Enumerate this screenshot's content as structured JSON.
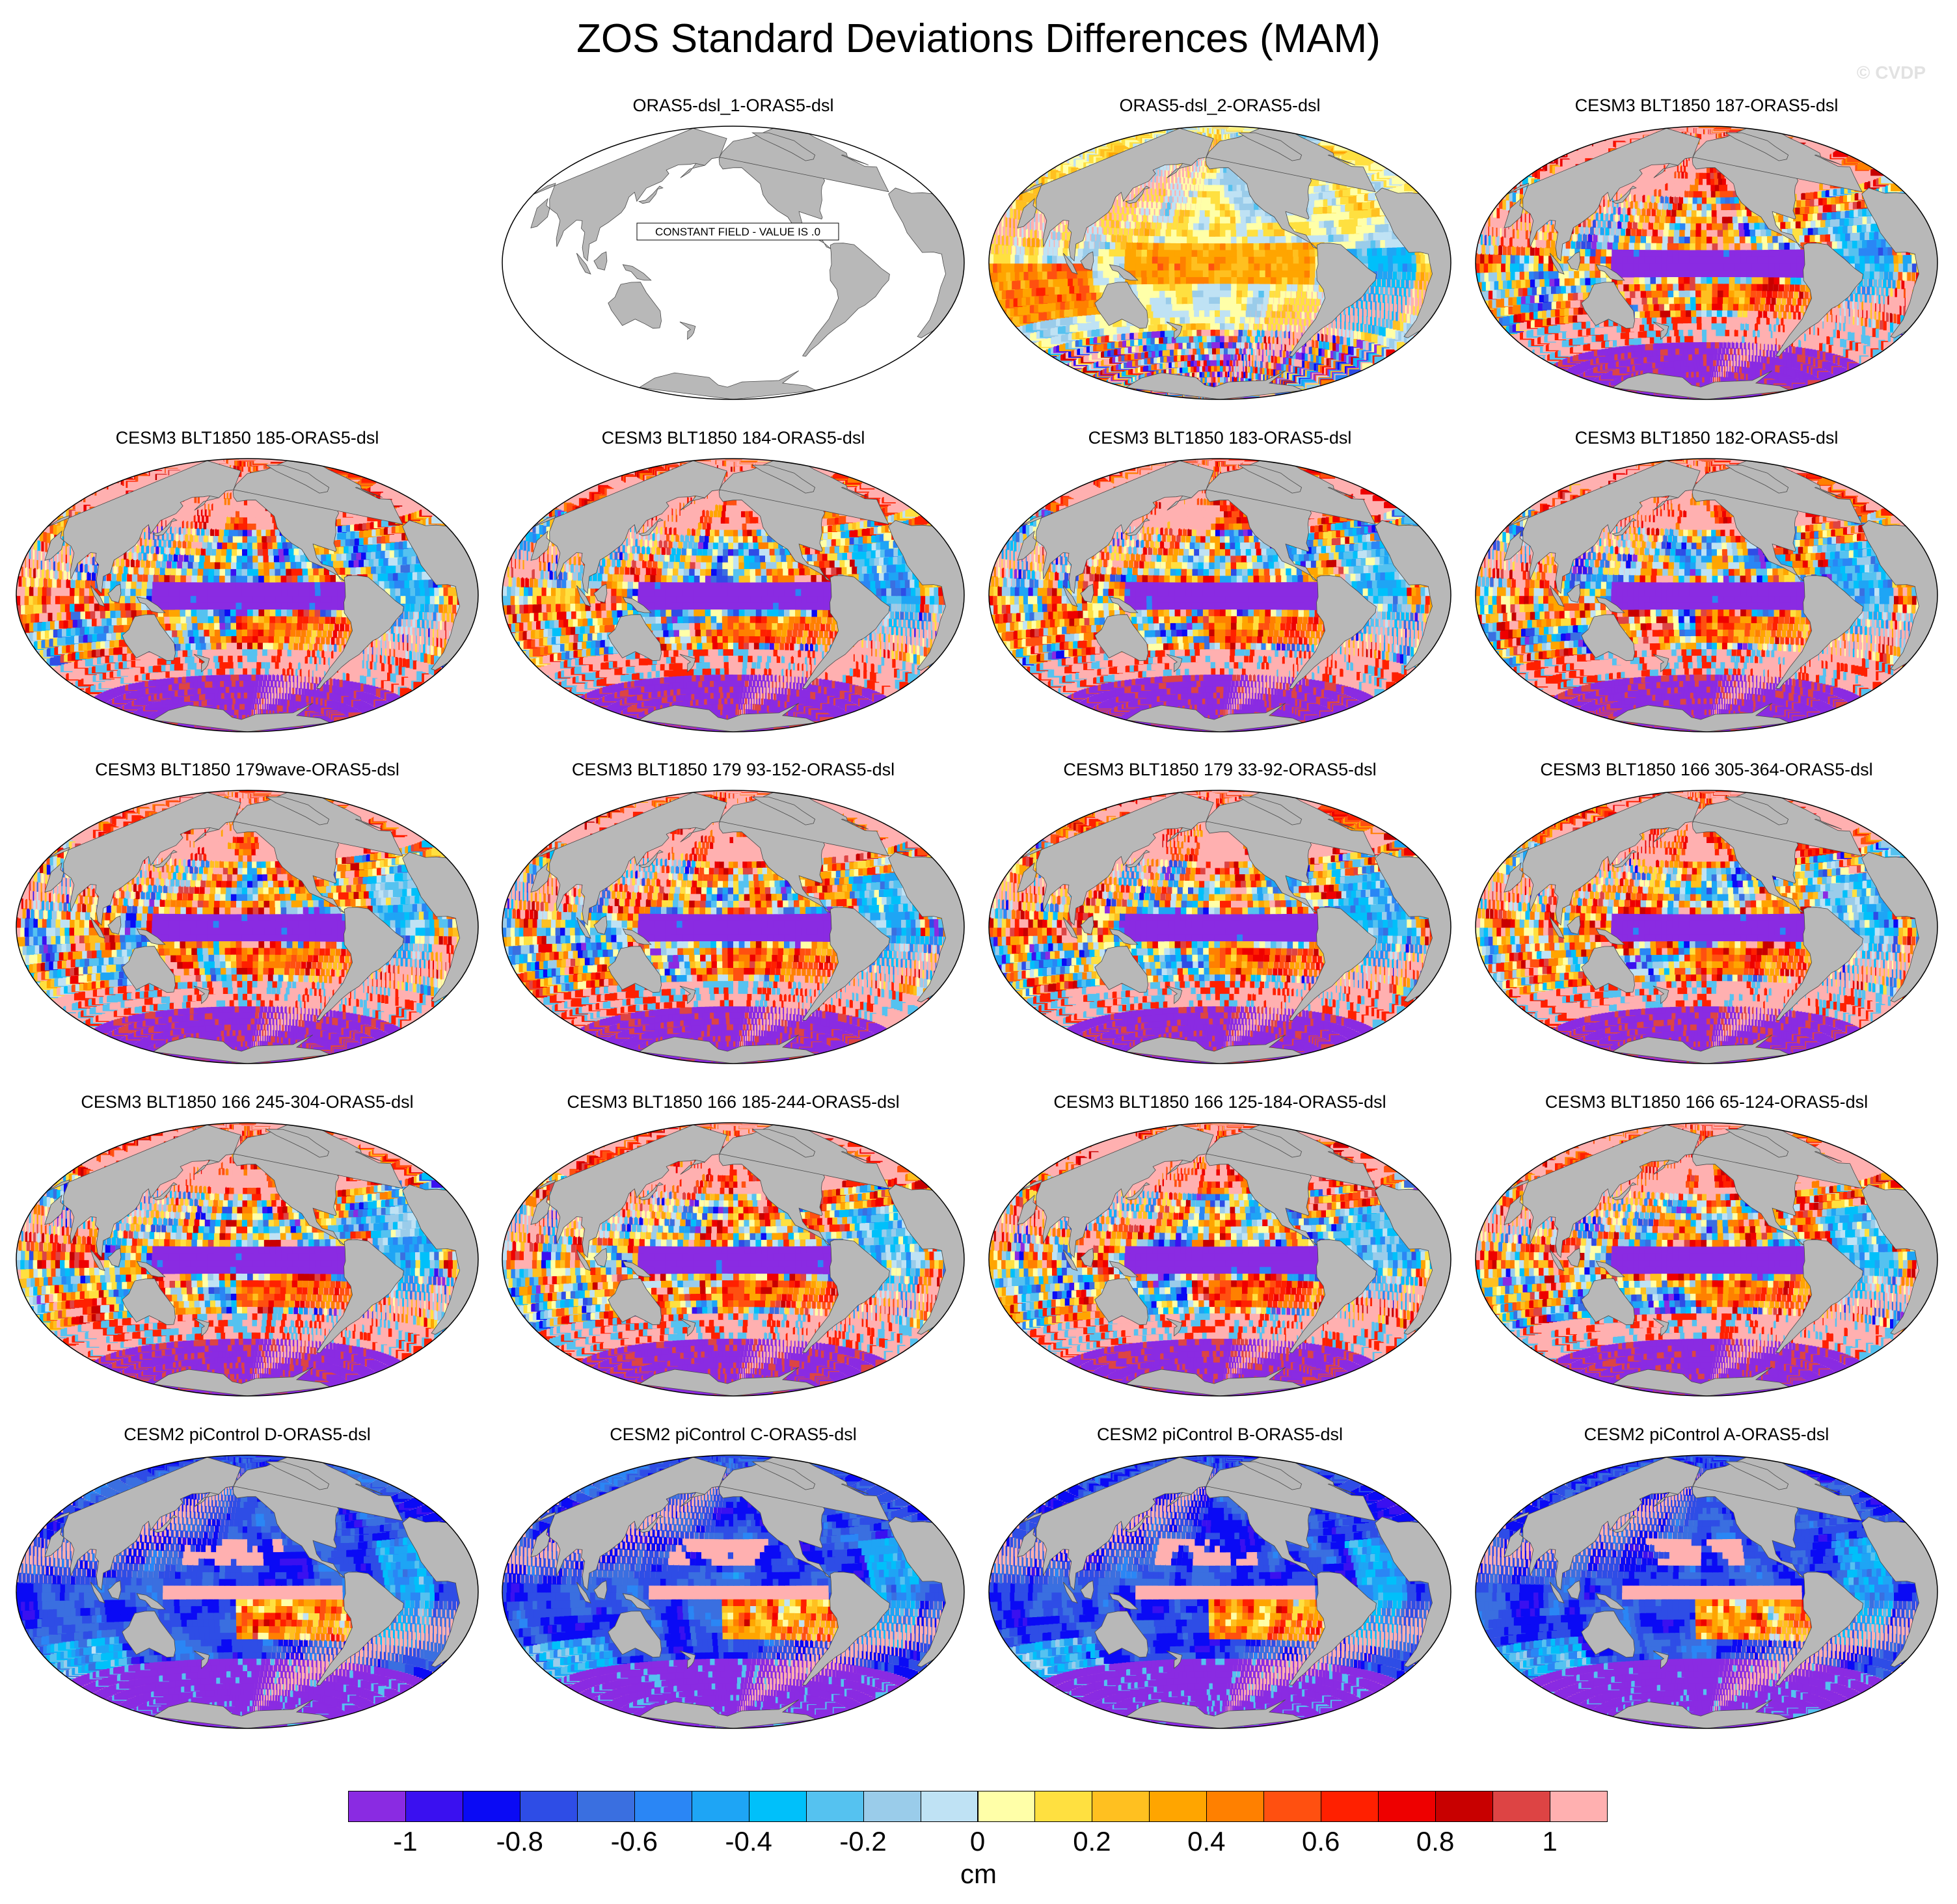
{
  "title": "ZOS Standard Deviations Differences (MAM)",
  "watermark": "© CVDP",
  "panels": [
    {
      "title": "ORAS5-dsl_1-ORAS5-dsl",
      "pattern": "constant",
      "note": "CONSTANT FIELD - VALUE IS .0"
    },
    {
      "title": "ORAS5-dsl_2-ORAS5-dsl",
      "pattern": "reanalysis"
    },
    {
      "title": "CESM3 BLT1850 187-ORAS5-dsl",
      "pattern": "cesm3"
    },
    {
      "title": "CESM3 BLT1850 185-ORAS5-dsl",
      "pattern": "cesm3"
    },
    {
      "title": "CESM3 BLT1850 184-ORAS5-dsl",
      "pattern": "cesm3"
    },
    {
      "title": "CESM3 BLT1850 183-ORAS5-dsl",
      "pattern": "cesm3"
    },
    {
      "title": "CESM3 BLT1850 182-ORAS5-dsl",
      "pattern": "cesm3"
    },
    {
      "title": "CESM3 BLT1850 179wave-ORAS5-dsl",
      "pattern": "cesm3"
    },
    {
      "title": "CESM3 BLT1850 179 93-152-ORAS5-dsl",
      "pattern": "cesm3"
    },
    {
      "title": "CESM3 BLT1850 179 33-92-ORAS5-dsl",
      "pattern": "cesm3"
    },
    {
      "title": "CESM3 BLT1850 166 305-364-ORAS5-dsl",
      "pattern": "cesm3"
    },
    {
      "title": "CESM3 BLT1850 166 245-304-ORAS5-dsl",
      "pattern": "cesm3"
    },
    {
      "title": "CESM3 BLT1850 166 185-244-ORAS5-dsl",
      "pattern": "cesm3"
    },
    {
      "title": "CESM3 BLT1850 166 125-184-ORAS5-dsl",
      "pattern": "cesm3"
    },
    {
      "title": "CESM3 BLT1850 166 65-124-ORAS5-dsl",
      "pattern": "cesm3"
    },
    {
      "title": "CESM2 piControl D-ORAS5-dsl",
      "pattern": "cesm2"
    },
    {
      "title": "CESM2 piControl C-ORAS5-dsl",
      "pattern": "cesm2"
    },
    {
      "title": "CESM2 piControl B-ORAS5-dsl",
      "pattern": "cesm2"
    },
    {
      "title": "CESM2 piControl A-ORAS5-dsl",
      "pattern": "cesm2"
    }
  ],
  "colorbar": {
    "units": "cm",
    "colors": [
      "#8a2be2",
      "#3a10f0",
      "#0a0af5",
      "#2e4de6",
      "#3a6fe0",
      "#2a86f5",
      "#1ea5f5",
      "#00c0fa",
      "#55c2f0",
      "#9accea",
      "#bfe2f4",
      "#ffffa8",
      "#ffe040",
      "#ffc020",
      "#ffa500",
      "#ff8000",
      "#ff5010",
      "#ff2000",
      "#ee0000",
      "#c80000",
      "#dd4444",
      "#ffb0b0"
    ],
    "tick_labels": [
      "-1",
      "-0.8",
      "-0.6",
      "-0.4",
      "-0.2",
      "0",
      "0.2",
      "0.4",
      "0.6",
      "0.8",
      "1"
    ],
    "tick_values": [
      -1,
      -0.8,
      -0.6,
      -0.4,
      -0.2,
      0,
      0.2,
      0.4,
      0.6,
      0.8,
      1
    ],
    "range": [
      -1.1,
      1.1
    ]
  }
}
